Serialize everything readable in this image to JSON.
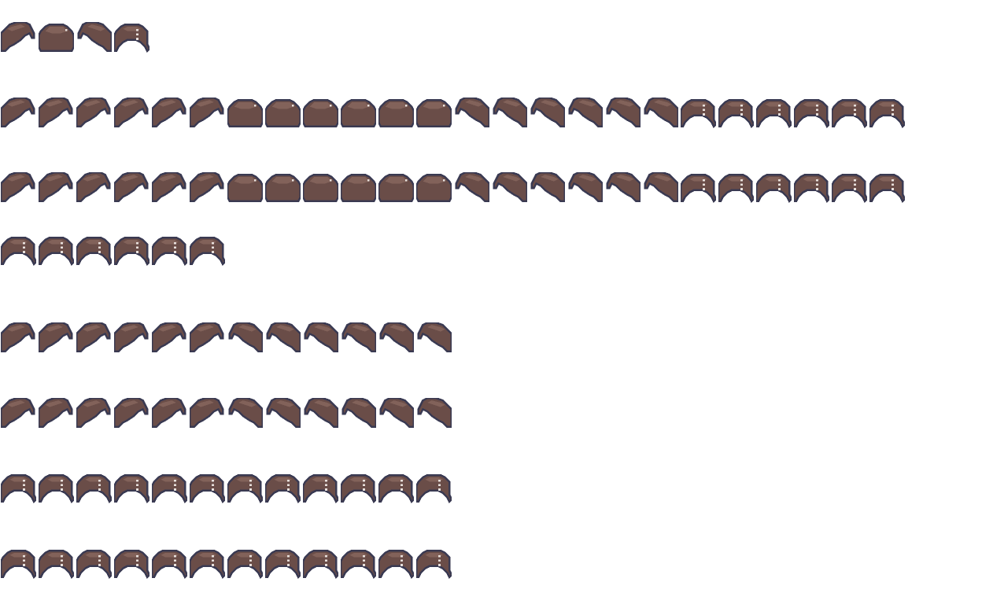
{
  "sheet": {
    "type": "hair sprite sheet",
    "colors": {
      "hair": "#6a4d48",
      "highlight": "#82625a",
      "outline": "#3a3a52",
      "shine": "#e8e0dc",
      "background": "#ffffff"
    },
    "rows": [
      [
        "side-left",
        "front",
        "side-right",
        "back"
      ],
      [
        "side-left",
        "side-left",
        "side-left",
        "side-left",
        "side-left",
        "side-left",
        "front",
        "front",
        "front",
        "front",
        "front",
        "front",
        "side-right",
        "side-right",
        "side-right",
        "side-right",
        "side-right",
        "side-right",
        "back",
        "back",
        "back",
        "back",
        "back",
        "back"
      ],
      [
        "side-left",
        "side-left",
        "side-left",
        "side-left",
        "side-left",
        "side-left",
        "front",
        "front",
        "front",
        "front",
        "front",
        "front",
        "side-right",
        "side-right",
        "side-right",
        "side-right",
        "side-right",
        "side-right",
        "back",
        "back",
        "back",
        "back",
        "back",
        "back"
      ],
      [
        "back",
        "back",
        "back",
        "back",
        "back",
        "back"
      ],
      [
        "side-left",
        "side-left",
        "side-left",
        "side-left",
        "side-left",
        "side-left",
        "side-right",
        "side-right",
        "side-right",
        "side-right",
        "side-right",
        "side-right"
      ],
      [
        "side-left",
        "side-left",
        "side-left",
        "side-left",
        "side-left",
        "side-left",
        "side-right",
        "side-right",
        "side-right",
        "side-right",
        "side-right",
        "side-right"
      ],
      [
        "back",
        "back",
        "back",
        "back",
        "back",
        "back",
        "back",
        "back",
        "back",
        "back",
        "back",
        "back"
      ],
      [
        "back",
        "back",
        "back",
        "back",
        "back",
        "back",
        "back",
        "back",
        "back",
        "back",
        "back",
        "back"
      ]
    ]
  }
}
